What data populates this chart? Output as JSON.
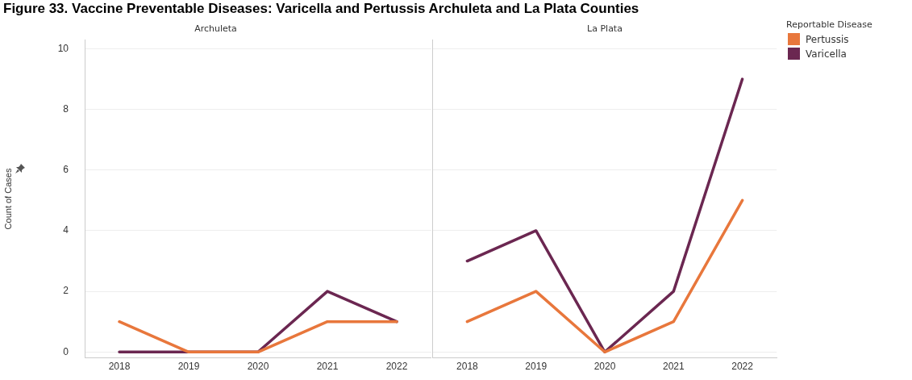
{
  "chart_data": [
    {
      "type": "line",
      "title": "Figure 33. Vaccine Preventable Diseases: Varicella and Pertussis Archuleta and La Plata Counties",
      "subtitle": "Archuleta",
      "ylabel": "Count of Cases",
      "categories": [
        "2018",
        "2019",
        "2020",
        "2021",
        "2022"
      ],
      "ylim": [
        -0.2,
        10.3
      ],
      "yticks": [
        0,
        2,
        4,
        6,
        8,
        10
      ],
      "grid": "y",
      "legend": false,
      "series": [
        {
          "color": "#e8773c",
          "values": [
            1,
            0,
            0,
            1,
            1
          ]
        },
        {
          "color": "#6b2751",
          "values": [
            0,
            0,
            0,
            2,
            1
          ]
        }
      ]
    },
    {
      "type": "line",
      "subtitle": "La Plata",
      "categories": [
        "2018",
        "2019",
        "2020",
        "2021",
        "2022"
      ],
      "ylim": [
        -0.2,
        10.3
      ],
      "yticks": [
        0,
        2,
        4,
        6,
        8,
        10
      ],
      "grid": "y",
      "tick_labels": "x",
      "legend": "right",
      "legend_title": "Reportable Disease",
      "series": [
        {
          "name": "Pertussis",
          "color": "#e8773c",
          "values": [
            1,
            2,
            0,
            1,
            5
          ]
        },
        {
          "name": "Varicella",
          "color": "#6b2751",
          "values": [
            3,
            4,
            0,
            2,
            9
          ]
        }
      ]
    }
  ]
}
